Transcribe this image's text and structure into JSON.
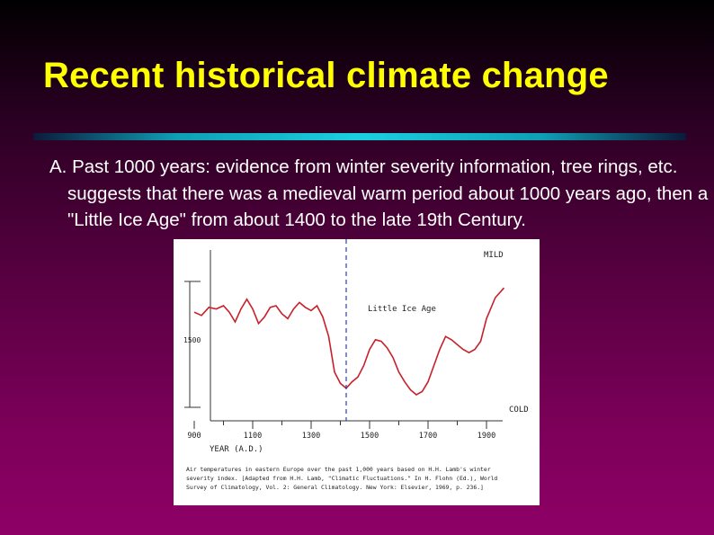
{
  "slide": {
    "title": "Recent historical climate change",
    "body": "A. Past 1000 years: evidence from winter severity information, tree rings, etc. suggests that there was a medieval warm period about 1000 years ago, then a \"Little Ice Age\" from about 1400 to the late 19th Century."
  },
  "figure": {
    "label_mild": "MILD",
    "label_cold": "COLD",
    "label_little_ice_age": "Little Ice Age",
    "label_1500": "1500",
    "x_axis_label": "YEAR (A.D.)",
    "caption_line1": "Air temperatures in eastern Europe over the past 1,000 years based on H.H. Lamb's winter",
    "caption_line2": "severity index. [Adapted from H.H. Lamb, \"Climatic Fluctuations.\" In H. Flohn (Ed.), World",
    "caption_line3": "Survey of Climatology, Vol. 2: General Climatology. New York: Elsevier, 1969, p. 236.]"
  },
  "chart_data": {
    "type": "line",
    "x_ticks": [
      900,
      1100,
      1300,
      1500,
      1700,
      1900
    ],
    "xlim": [
      900,
      1900
    ],
    "ylim": [
      0,
      10
    ],
    "ymarker_label": "1500",
    "annotation": {
      "label": "Little Ice Age",
      "x": 1420
    },
    "series": [
      {
        "x": [
          900,
          925,
          950,
          975,
          1000,
          1020,
          1040,
          1060,
          1080,
          1100,
          1120,
          1140,
          1160,
          1180,
          1200,
          1220,
          1240,
          1260,
          1280,
          1300,
          1320,
          1340,
          1360,
          1380,
          1400,
          1420,
          1440,
          1460,
          1480,
          1500,
          1520,
          1540,
          1560,
          1580,
          1600,
          1620,
          1640,
          1660,
          1680,
          1700,
          1720,
          1740,
          1760,
          1780,
          1800,
          1820,
          1840,
          1860,
          1880,
          1900,
          1930,
          1960
        ],
        "y": [
          6.6,
          6.4,
          6.9,
          6.8,
          7.0,
          6.6,
          6.0,
          6.8,
          7.4,
          6.8,
          5.9,
          6.3,
          6.9,
          7.0,
          6.5,
          6.2,
          6.8,
          7.2,
          6.9,
          6.7,
          7.0,
          6.3,
          5.1,
          2.9,
          2.2,
          1.9,
          2.3,
          2.6,
          3.3,
          4.3,
          4.9,
          4.8,
          4.4,
          3.8,
          2.9,
          2.3,
          1.8,
          1.5,
          1.7,
          2.3,
          3.3,
          4.3,
          5.1,
          4.9,
          4.6,
          4.3,
          4.1,
          4.3,
          4.8,
          6.2,
          7.5,
          8.1
        ]
      }
    ]
  }
}
